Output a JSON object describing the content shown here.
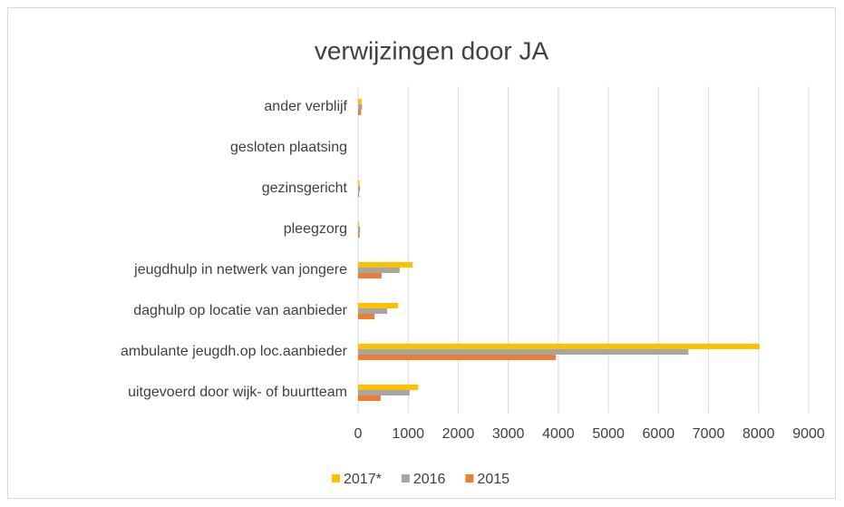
{
  "chart_data": {
    "type": "hbar",
    "title": "verwijzingen door JA",
    "categories": [
      "uitgevoerd door wijk- of buurtteam",
      "ambulante jeugdh.op loc.aanbieder",
      "daghulp op locatie van aanbieder",
      "jeugdhulp in netwerk van jongere",
      "pleegzorg",
      "gezinsgericht",
      "gesloten plaatsing",
      "ander verblijf"
    ],
    "series": [
      {
        "name": "2017*",
        "color": "#FFC000",
        "values": [
          1200,
          8020,
          800,
          1090,
          20,
          30,
          0,
          70
        ]
      },
      {
        "name": "2016",
        "color": "#A5A5A5",
        "values": [
          1030,
          6600,
          580,
          830,
          40,
          40,
          0,
          80
        ]
      },
      {
        "name": "2015",
        "color": "#ED7D31",
        "values": [
          450,
          3950,
          330,
          470,
          30,
          20,
          0,
          60
        ]
      }
    ],
    "xlim": [
      0,
      9000
    ],
    "xticks": [
      0,
      1000,
      2000,
      3000,
      4000,
      5000,
      6000,
      7000,
      8000,
      9000
    ],
    "grid": true,
    "legend": "bottom"
  }
}
